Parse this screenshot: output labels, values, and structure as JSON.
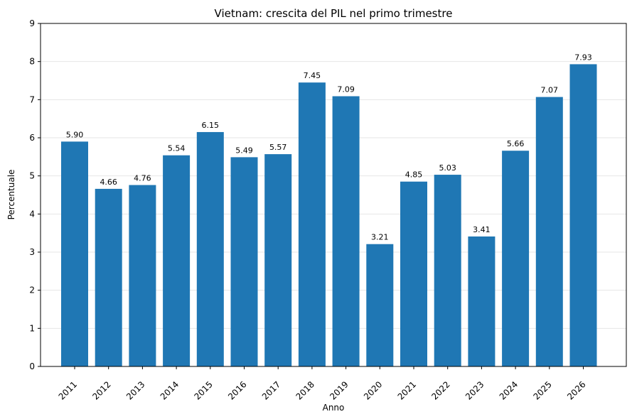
{
  "chart_data": {
    "type": "bar",
    "title": "Vietnam: crescita del PIL nel primo trimestre",
    "xlabel": "Anno",
    "ylabel": "Percentuale",
    "categories": [
      "2011",
      "2012",
      "2013",
      "2014",
      "2015",
      "2016",
      "2017",
      "2018",
      "2019",
      "2020",
      "2021",
      "2022",
      "2023",
      "2024",
      "2025",
      "2026"
    ],
    "values": [
      5.9,
      4.66,
      4.76,
      5.54,
      6.15,
      5.49,
      5.57,
      7.45,
      7.09,
      3.21,
      4.85,
      5.03,
      3.41,
      5.66,
      7.07,
      7.93
    ],
    "data_labels": [
      "5.90",
      "4.66",
      "4.76",
      "5.54",
      "6.15",
      "5.49",
      "5.57",
      "7.45",
      "7.09",
      "3.21",
      "4.85",
      "5.03",
      "3.41",
      "5.66",
      "7.07",
      "7.93"
    ],
    "ylim": [
      0,
      9
    ],
    "yticks": [
      "0",
      "1",
      "2",
      "3",
      "4",
      "5",
      "6",
      "7",
      "8",
      "9"
    ],
    "grid": "horizontal",
    "bar_color": "#1f77b4"
  }
}
